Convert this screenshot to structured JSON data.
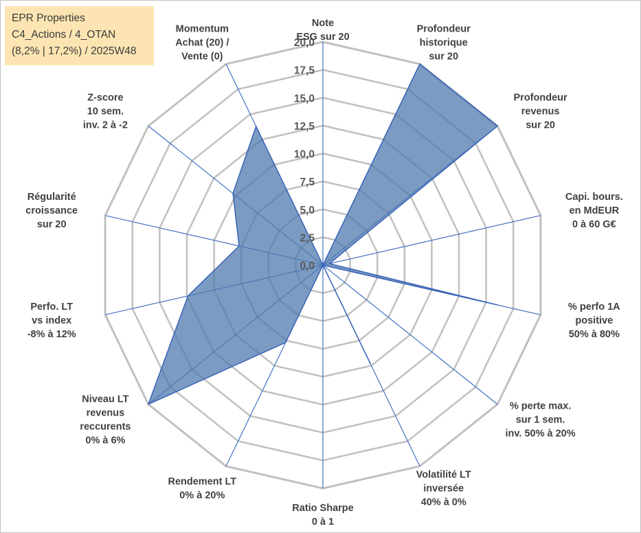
{
  "info_box": {
    "line1": "EPR Properties",
    "line2": "C4_Actions / 4_OTAN",
    "line3": "(8,2% | 17,2%) / 2025W48"
  },
  "colors": {
    "grid": "#c0c0c0",
    "spoke": "#4472c4",
    "fill": "#4f79ad",
    "fill_opacity": "0.75",
    "stroke": "#3a64b8",
    "info_bg": "#fce5b2"
  },
  "chart_data": {
    "type": "radar",
    "title": "",
    "axis_range": [
      0,
      20
    ],
    "tick_values": [
      0,
      2.5,
      5,
      7.5,
      10,
      12.5,
      15,
      17.5,
      20
    ],
    "tick_labels": [
      "0,0",
      "2,5",
      "5,0",
      "7,5",
      "10,0",
      "12,5",
      "15,0",
      "17,5",
      "20,0"
    ],
    "axes": [
      {
        "label": [
          "Note",
          "ESG sur 20"
        ],
        "value": 0
      },
      {
        "label": [
          "Profondeur",
          "historique",
          "sur 20"
        ],
        "value": 20
      },
      {
        "label": [
          "Profondeur",
          "revenus",
          "sur 20"
        ],
        "value": 20
      },
      {
        "label": [
          "Capi. bours.",
          "en MdEUR",
          "0 à 60 G€"
        ],
        "value": 0.6
      },
      {
        "label": [
          "% perfo 1A",
          "positive",
          "50% à 80%"
        ],
        "value": 16.1
      },
      {
        "label": [
          "% perte max.",
          "sur 1 sem.",
          "inv. 50% à 20%"
        ],
        "value": 0
      },
      {
        "label": [
          "Volatilité LT",
          "inversée",
          "40% à 0%"
        ],
        "value": 9.8
      },
      {
        "label": [
          "Ratio Sharpe",
          "0 à 1"
        ],
        "value": 0
      },
      {
        "label": [
          "Rendement LT",
          "0% à 20%"
        ],
        "value": 7.7
      },
      {
        "label": [
          "Niveau LT",
          "revenus",
          "reccurents",
          "0% à 6%"
        ],
        "value": 20
      },
      {
        "label": [
          "Perfo. LT",
          "vs index",
          "-8% à 12%"
        ],
        "value": 12.4
      },
      {
        "label": [
          "Régularité",
          "croissance",
          "sur 20"
        ],
        "value": 7.7
      },
      {
        "label": [
          "Z-score",
          "10 sem.",
          "inv. 2 à -2"
        ],
        "value": 10.3
      },
      {
        "label": [
          "Momentum",
          "Achat (20) /",
          "Vente (0)"
        ],
        "value": 13.8
      }
    ],
    "series": [
      {
        "name": "EPR Properties",
        "color": "#4f79ad"
      }
    ]
  }
}
